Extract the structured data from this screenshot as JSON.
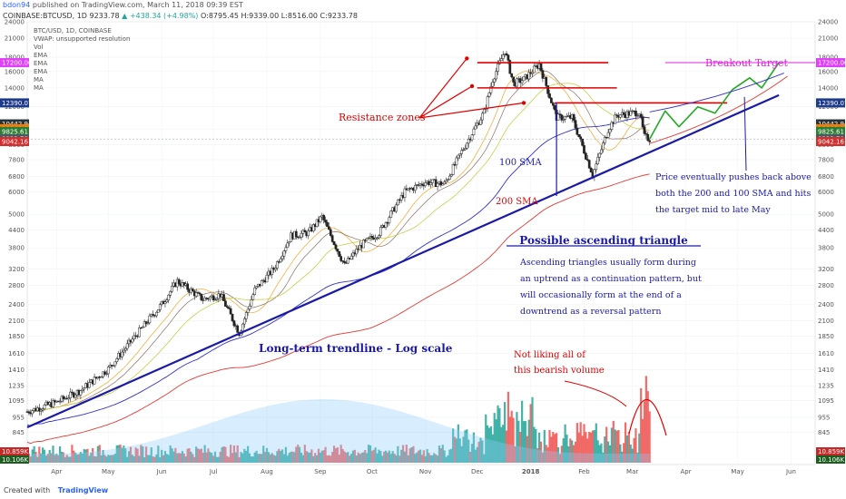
{
  "header": {
    "author": "bdon94",
    "published": "published on TradingView.com, March 11, 2018 09:39 EST",
    "symbol": "COINBASE:BTCUSD, 1D",
    "price": "9233.78",
    "change": "▲ +438.34 (+4.98%)",
    "ohlc": "O:8795.45 H:9339.00 L:8516.00 C:9233.78"
  },
  "legend": [
    "BTC/USD, 1D, COINBASE",
    "VWAP: unsupported resolution",
    "Vol",
    "EMA",
    "EMA",
    "EMA",
    "MA",
    "MA"
  ],
  "footer": {
    "created": "Created with",
    "brand": "TradingView"
  },
  "colors": {
    "candle_up": "#26a69a",
    "candle_down": "#ef5350",
    "sma100": "#3333cc",
    "sma200": "#e53935",
    "trend": "#1a1aa6",
    "resistance": "#e00000",
    "target": "#e020e0",
    "projection": "#22aa22"
  },
  "chart_data": {
    "type": "candlestick",
    "title": "BTC/USD, 1D, COINBASE",
    "scale": "log",
    "ylim": [
      650,
      24000
    ],
    "y_ticks": [
      24000,
      21000,
      18000,
      16000,
      14000,
      12000,
      10000,
      8800,
      7800,
      6800,
      6000,
      5000,
      4400,
      3800,
      3200,
      2800,
      2400,
      2100,
      1850,
      1610,
      1410,
      1235,
      1095,
      955,
      845
    ],
    "x_ticks": [
      "Apr",
      "May",
      "Jun",
      "Jul",
      "Aug",
      "Sep",
      "Oct",
      "Nov",
      "Dec",
      "2018",
      "Feb",
      "Mar",
      "Apr",
      "May",
      "Jun"
    ],
    "series": [
      {
        "name": "BTC/USD daily price (approx.)",
        "x": [
          "2017-03-15",
          "2017-04-01",
          "2017-04-15",
          "2017-05-01",
          "2017-05-15",
          "2017-06-01",
          "2017-06-10",
          "2017-06-25",
          "2017-07-05",
          "2017-07-16",
          "2017-07-25",
          "2017-08-05",
          "2017-08-15",
          "2017-08-25",
          "2017-09-02",
          "2017-09-15",
          "2017-09-25",
          "2017-10-05",
          "2017-10-20",
          "2017-11-01",
          "2017-11-12",
          "2017-11-25",
          "2017-12-05",
          "2017-12-10",
          "2017-12-17",
          "2017-12-22",
          "2017-12-28",
          "2018-01-06",
          "2018-01-16",
          "2018-01-25",
          "2018-02-06",
          "2018-02-15",
          "2018-02-20",
          "2018-03-05",
          "2018-03-08",
          "2018-03-11"
        ],
        "values": [
          1000,
          1080,
          1190,
          1420,
          1800,
          2400,
          2900,
          2500,
          2600,
          1900,
          2700,
          3200,
          4200,
          4300,
          4900,
          3300,
          3900,
          4300,
          6000,
          6500,
          6400,
          9000,
          11500,
          15000,
          19000,
          14500,
          15000,
          17000,
          11000,
          11000,
          6900,
          10000,
          11200,
          11500,
          9400,
          9233.78
        ]
      }
    ],
    "price_labels": [
      "17200.00",
      "12390.07",
      "10442.94",
      "10040.07",
      "9825.61",
      "9233.78",
      "9042.16"
    ],
    "volume_labels": [
      "10.859K",
      "10.106K"
    ],
    "moving_averages": [
      "100 SMA",
      "200 SMA"
    ],
    "resistance_levels": [
      17200,
      14000,
      12390
    ],
    "breakout_target": 17200,
    "projection": {
      "start": "2018-03-11",
      "end": "2018-05-25",
      "end_value": 17200
    }
  },
  "annotations": {
    "resistance": "Resistance zones",
    "breakout": "Breakout Target",
    "sma100": "100 SMA",
    "sma200": "200 SMA",
    "triangle_title": "Possible ascending triangle",
    "triangle_lines": [
      "Ascending triangles usually form during",
      "an uptrend as a continuation pattern, but",
      "will occasionally form at the end of a",
      "downtrend as a reversal pattern"
    ],
    "price_lines": [
      "Price eventually pushes back above",
      "both the 200 and 100 SMA and hits",
      "the target mid to late May"
    ],
    "volume_lines": [
      "Not liking all of",
      "this bearish volume"
    ],
    "trendline": "Long-term trendline - Log scale"
  }
}
